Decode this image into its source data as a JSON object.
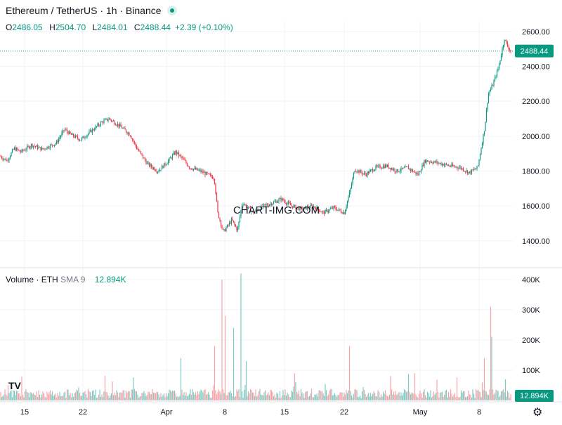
{
  "header": {
    "title": "Ethereum / TetherUS · 1h · Binance",
    "ohlc": [
      {
        "key": "O",
        "value": "2486.05"
      },
      {
        "key": "H",
        "value": "2504.70"
      },
      {
        "key": "L",
        "value": "2484.01"
      },
      {
        "key": "C",
        "value": "2488.44"
      }
    ],
    "change": "+2.39 (+0.10%)"
  },
  "volume_header": {
    "label": "Volume",
    "sep": "·",
    "symbol": "ETH",
    "indicator": "SMA 9",
    "value": "12.894K"
  },
  "watermark": "CHART-IMG.COM",
  "logo": "TV",
  "colors": {
    "up": "#089981",
    "down": "#f23645",
    "up_vol": "#80cbc4",
    "down_vol": "#f7a5a9",
    "grid": "#f0f3fa",
    "axis_text": "#131722"
  },
  "chart_data": [
    {
      "type": "candlestick",
      "title": "Ethereum / TetherUS · 1h · Binance",
      "ylim": [
        1250,
        2660
      ],
      "ticks": [
        1400,
        1600,
        1800,
        2000,
        2200,
        2400,
        2600
      ],
      "tick_labels": [
        "1400.00",
        "1600.00",
        "1800.00",
        "2000.00",
        "2200.00",
        "2400.00",
        "2600.00"
      ],
      "last_price": 2488.44,
      "last_price_label": "2488.44",
      "x_tick_labels": [
        "15",
        "22",
        "Apr",
        "8",
        "15",
        "22",
        "May",
        "8"
      ],
      "path": [
        [
          0,
          1885
        ],
        [
          10,
          1860
        ],
        [
          20,
          1930
        ],
        [
          30,
          1910
        ],
        [
          45,
          1950
        ],
        [
          60,
          1925
        ],
        [
          80,
          1960
        ],
        [
          92,
          2040
        ],
        [
          100,
          2010
        ],
        [
          115,
          1980
        ],
        [
          130,
          2030
        ],
        [
          145,
          2080
        ],
        [
          155,
          2100
        ],
        [
          170,
          2060
        ],
        [
          185,
          2010
        ],
        [
          195,
          1930
        ],
        [
          210,
          1840
        ],
        [
          225,
          1800
        ],
        [
          240,
          1860
        ],
        [
          250,
          1910
        ],
        [
          260,
          1870
        ],
        [
          270,
          1820
        ],
        [
          285,
          1800
        ],
        [
          305,
          1760
        ],
        [
          310,
          1560
        ],
        [
          318,
          1450
        ],
        [
          330,
          1520
        ],
        [
          338,
          1460
        ],
        [
          345,
          1620
        ],
        [
          360,
          1560
        ],
        [
          375,
          1600
        ],
        [
          390,
          1620
        ],
        [
          400,
          1640
        ],
        [
          415,
          1600
        ],
        [
          430,
          1580
        ],
        [
          445,
          1600
        ],
        [
          460,
          1560
        ],
        [
          475,
          1590
        ],
        [
          490,
          1560
        ],
        [
          498,
          1680
        ],
        [
          505,
          1810
        ],
        [
          520,
          1780
        ],
        [
          535,
          1820
        ],
        [
          550,
          1830
        ],
        [
          565,
          1800
        ],
        [
          580,
          1820
        ],
        [
          595,
          1780
        ],
        [
          605,
          1860
        ],
        [
          620,
          1850
        ],
        [
          640,
          1830
        ],
        [
          655,
          1820
        ],
        [
          668,
          1790
        ],
        [
          680,
          1820
        ],
        [
          690,
          2050
        ],
        [
          695,
          2240
        ],
        [
          702,
          2300
        ],
        [
          710,
          2400
        ],
        [
          718,
          2560
        ],
        [
          722,
          2520
        ],
        [
          727,
          2488
        ]
      ]
    },
    {
      "type": "bar",
      "title": "Volume · ETH",
      "ylim": [
        0,
        430000
      ],
      "ticks": [
        100000,
        200000,
        300000,
        400000
      ],
      "tick_labels": [
        "100K",
        "200K",
        "300K",
        "400K"
      ],
      "last_value_label": "12.894K",
      "spikes": [
        [
          258,
          140000
        ],
        [
          305,
          180000
        ],
        [
          316,
          400000
        ],
        [
          320,
          280000
        ],
        [
          332,
          240000
        ],
        [
          343,
          420000
        ],
        [
          350,
          130000
        ],
        [
          420,
          90000
        ],
        [
          497,
          180000
        ],
        [
          591,
          90000
        ],
        [
          690,
          140000
        ],
        [
          698,
          310000
        ],
        [
          700,
          210000
        ],
        [
          720,
          70000
        ]
      ]
    }
  ]
}
